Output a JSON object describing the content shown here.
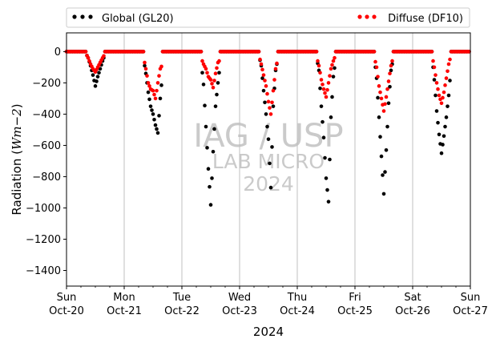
{
  "chart_data": {
    "type": "scatter",
    "xlabel": "2024",
    "ylabel": "Radiation ($Wm{-}2$)",
    "ylim": [
      -1500,
      120
    ],
    "xlim": [
      "2024-10-20",
      "2024-10-27"
    ],
    "yticks": [
      0,
      -200,
      -400,
      -600,
      -800,
      -1000,
      -1200,
      -1400
    ],
    "xticks": [
      {
        "date": "2024-10-20",
        "day": "Sun",
        "label": "Oct-20"
      },
      {
        "date": "2024-10-21",
        "day": "Mon",
        "label": "Oct-21"
      },
      {
        "date": "2024-10-22",
        "day": "Tue",
        "label": "Oct-22"
      },
      {
        "date": "2024-10-23",
        "day": "Wed",
        "label": "Oct-23"
      },
      {
        "date": "2024-10-24",
        "day": "Thu",
        "label": "Oct-24"
      },
      {
        "date": "2024-10-25",
        "day": "Fri",
        "label": "Oct-25"
      },
      {
        "date": "2024-10-26",
        "day": "Sat",
        "label": "Oct-26"
      },
      {
        "date": "2024-10-27",
        "day": "Sun",
        "label": "Oct-27"
      }
    ],
    "grid": "vertical at days",
    "legend": {
      "placement": "top, above plot"
    },
    "watermark": {
      "line1": "IAG / USP",
      "line2": "LAB MICRO",
      "line3": "2024"
    },
    "series": [
      {
        "name": "Global (GL20)",
        "color": "#000000",
        "days": [
          {
            "date": "2024-10-20",
            "points": [
              [
                "08:00",
                -10
              ],
              [
                "09:00",
                -40
              ],
              [
                "10:00",
                -90
              ],
              [
                "11:00",
                -150
              ],
              [
                "12:00",
                -220
              ],
              [
                "13:00",
                -160
              ],
              [
                "14:00",
                -110
              ],
              [
                "15:00",
                -60
              ],
              [
                "16:00",
                -20
              ]
            ]
          },
          {
            "date": "2024-10-21",
            "points": [
              [
                "08:00",
                -40
              ],
              [
                "09:00",
                -140
              ],
              [
                "10:00",
                -260
              ],
              [
                "11:00",
                -350
              ],
              [
                "12:00",
                -400
              ],
              [
                "13:00",
                -470
              ],
              [
                "14:00",
                -520
              ],
              [
                "15:00",
                -300
              ],
              [
                "16:00",
                -130
              ]
            ]
          },
          {
            "date": "2024-10-22",
            "points": [
              [
                "08:00",
                -60
              ],
              [
                "09:00",
                -210
              ],
              [
                "10:00",
                -480
              ],
              [
                "11:00",
                -750
              ],
              [
                "12:00",
                -980
              ],
              [
                "13:00",
                -640
              ],
              [
                "14:00",
                -350
              ],
              [
                "15:00",
                -200
              ],
              [
                "16:00",
                -70
              ]
            ]
          },
          {
            "date": "2024-10-23",
            "points": [
              [
                "08:00",
                -20
              ],
              [
                "09:00",
                -90
              ],
              [
                "10:00",
                -250
              ],
              [
                "11:00",
                -400
              ],
              [
                "12:00",
                -560
              ],
              [
                "13:00",
                -870
              ],
              [
                "14:00",
                -350
              ],
              [
                "15:00",
                -120
              ],
              [
                "16:00",
                -40
              ]
            ]
          },
          {
            "date": "2024-10-24",
            "points": [
              [
                "08:00",
                -30
              ],
              [
                "09:00",
                -120
              ],
              [
                "10:00",
                -350
              ],
              [
                "11:00",
                -550
              ],
              [
                "12:00",
                -810
              ],
              [
                "13:00",
                -960
              ],
              [
                "14:00",
                -420
              ],
              [
                "15:00",
                -160
              ],
              [
                "16:00",
                -50
              ]
            ]
          },
          {
            "date": "2024-10-25",
            "points": [
              [
                "08:00",
                -30
              ],
              [
                "09:00",
                -170
              ],
              [
                "10:00",
                -420
              ],
              [
                "11:00",
                -670
              ],
              [
                "12:00",
                -910
              ],
              [
                "13:00",
                -630
              ],
              [
                "14:00",
                -330
              ],
              [
                "15:00",
                -120
              ],
              [
                "16:00",
                -40
              ]
            ]
          },
          {
            "date": "2024-10-26",
            "points": [
              [
                "08:00",
                -20
              ],
              [
                "09:00",
                -180
              ],
              [
                "10:00",
                -380
              ],
              [
                "11:00",
                -530
              ],
              [
                "12:00",
                -650
              ],
              [
                "13:00",
                -540
              ],
              [
                "14:00",
                -420
              ],
              [
                "15:00",
                -280
              ],
              [
                "16:00",
                -90
              ]
            ]
          }
        ]
      },
      {
        "name": "Diffuse (DF10)",
        "color": "#ff0000",
        "days": [
          {
            "date": "2024-10-20",
            "points": [
              [
                "08:00",
                -10
              ],
              [
                "09:00",
                -40
              ],
              [
                "10:00",
                -80
              ],
              [
                "11:00",
                -110
              ],
              [
                "12:00",
                -130
              ],
              [
                "13:00",
                -100
              ],
              [
                "14:00",
                -70
              ],
              [
                "15:00",
                -40
              ],
              [
                "16:00",
                -15
              ]
            ]
          },
          {
            "date": "2024-10-21",
            "points": [
              [
                "08:00",
                -30
              ],
              [
                "09:00",
                -110
              ],
              [
                "10:00",
                -200
              ],
              [
                "11:00",
                -240
              ],
              [
                "12:00",
                -250
              ],
              [
                "13:00",
                -300
              ],
              [
                "14:00",
                -200
              ],
              [
                "15:00",
                -110
              ],
              [
                "16:00",
                -80
              ]
            ]
          },
          {
            "date": "2024-10-22",
            "points": [
              [
                "08:00",
                -40
              ],
              [
                "09:00",
                -80
              ],
              [
                "10:00",
                -110
              ],
              [
                "11:00",
                -160
              ],
              [
                "12:00",
                -180
              ],
              [
                "13:00",
                -230
              ],
              [
                "14:00",
                -140
              ],
              [
                "15:00",
                -70
              ],
              [
                "16:00",
                -50
              ]
            ]
          },
          {
            "date": "2024-10-23",
            "points": [
              [
                "08:00",
                -20
              ],
              [
                "09:00",
                -80
              ],
              [
                "10:00",
                -150
              ],
              [
                "11:00",
                -220
              ],
              [
                "12:00",
                -320
              ],
              [
                "13:00",
                -400
              ],
              [
                "14:00",
                -250
              ],
              [
                "15:00",
                -110
              ],
              [
                "16:00",
                -40
              ]
            ]
          },
          {
            "date": "2024-10-24",
            "points": [
              [
                "08:00",
                -30
              ],
              [
                "09:00",
                -90
              ],
              [
                "10:00",
                -180
              ],
              [
                "11:00",
                -240
              ],
              [
                "12:00",
                -290
              ],
              [
                "13:00",
                -200
              ],
              [
                "14:00",
                -110
              ],
              [
                "15:00",
                -60
              ],
              [
                "16:00",
                -20
              ]
            ]
          },
          {
            "date": "2024-10-25",
            "points": [
              [
                "08:00",
                -30
              ],
              [
                "09:00",
                -100
              ],
              [
                "10:00",
                -220
              ],
              [
                "11:00",
                -300
              ],
              [
                "12:00",
                -380
              ],
              [
                "13:00",
                -290
              ],
              [
                "14:00",
                -190
              ],
              [
                "15:00",
                -90
              ],
              [
                "16:00",
                -30
              ]
            ]
          },
          {
            "date": "2024-10-26",
            "points": [
              [
                "08:00",
                -20
              ],
              [
                "09:00",
                -100
              ],
              [
                "10:00",
                -200
              ],
              [
                "11:00",
                -280
              ],
              [
                "12:00",
                -330
              ],
              [
                "13:00",
                -260
              ],
              [
                "14:00",
                -170
              ],
              [
                "15:00",
                -80
              ],
              [
                "16:00",
                -20
              ]
            ]
          }
        ]
      }
    ]
  }
}
